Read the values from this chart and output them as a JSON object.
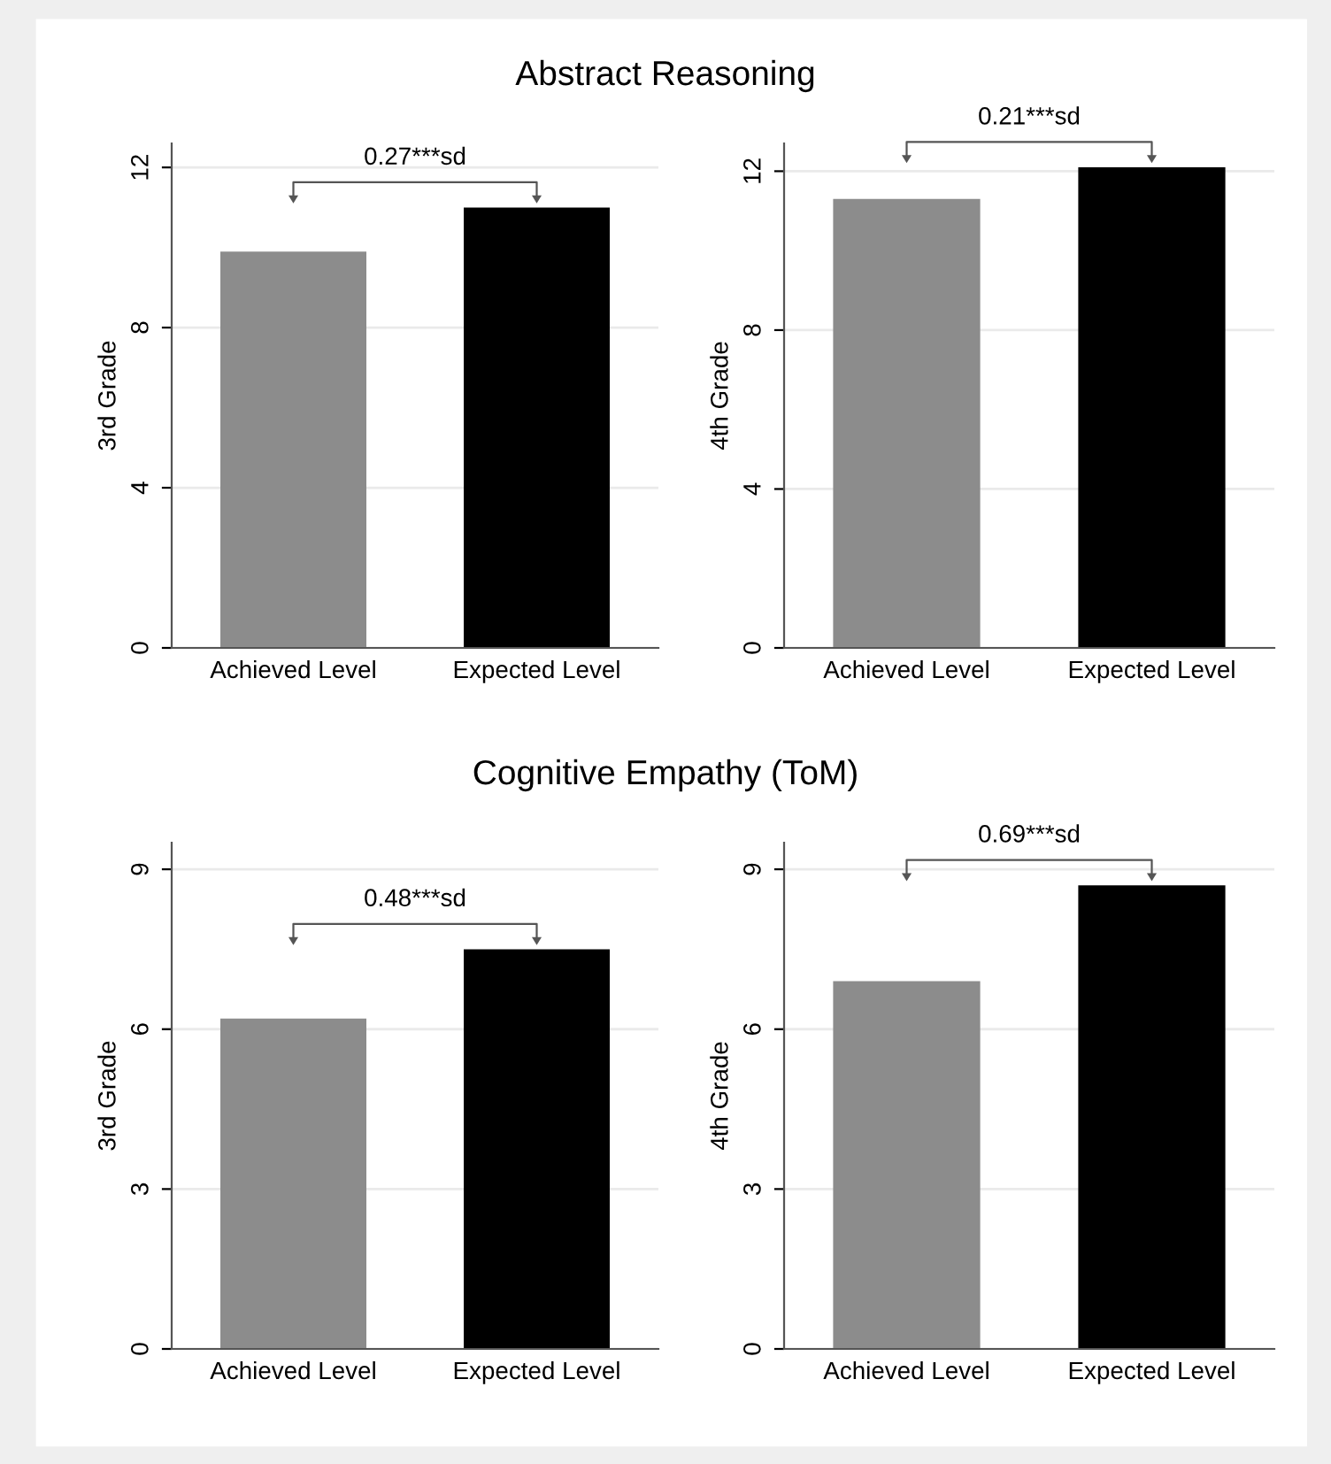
{
  "chart_data": [
    {
      "type": "bar",
      "title": "Abstract Reasoning",
      "categories": [
        "Achieved Level",
        "Expected Level"
      ],
      "values": [
        9.9,
        11.0
      ],
      "colors": [
        "#8c8c8c",
        "#000000"
      ],
      "ylabel": "3rd Grade",
      "ylim": [
        0,
        12.6
      ],
      "yticks": [
        0,
        4,
        8,
        12
      ],
      "grid": "y",
      "annotations": [
        "0.27***sd"
      ]
    },
    {
      "type": "bar",
      "categories": [
        "Achieved Level",
        "Expected Level"
      ],
      "values": [
        11.3,
        12.1
      ],
      "colors": [
        "#8c8c8c",
        "#000000"
      ],
      "ylabel": "4th Grade",
      "ylim": [
        0,
        12.7
      ],
      "yticks": [
        0,
        4,
        8,
        12
      ],
      "grid": "y",
      "annotations": [
        "0.21***sd"
      ]
    },
    {
      "type": "bar",
      "title": "Cognitive Empathy (ToM)",
      "categories": [
        "Achieved Level",
        "Expected Level"
      ],
      "values": [
        6.2,
        7.5
      ],
      "colors": [
        "#8c8c8c",
        "#000000"
      ],
      "ylabel": "3rd Grade",
      "ylim": [
        0,
        9.5
      ],
      "yticks": [
        0,
        3,
        6,
        9
      ],
      "grid": "y",
      "annotations": [
        "0.48***sd"
      ]
    },
    {
      "type": "bar",
      "categories": [
        "Achieved Level",
        "Expected Level"
      ],
      "values": [
        6.9,
        8.7
      ],
      "colors": [
        "#8c8c8c",
        "#000000"
      ],
      "ylabel": "4th Grade",
      "ylim": [
        0,
        9.5
      ],
      "yticks": [
        0,
        3,
        6,
        9
      ],
      "grid": "y",
      "annotations": [
        "0.69***sd"
      ]
    }
  ]
}
